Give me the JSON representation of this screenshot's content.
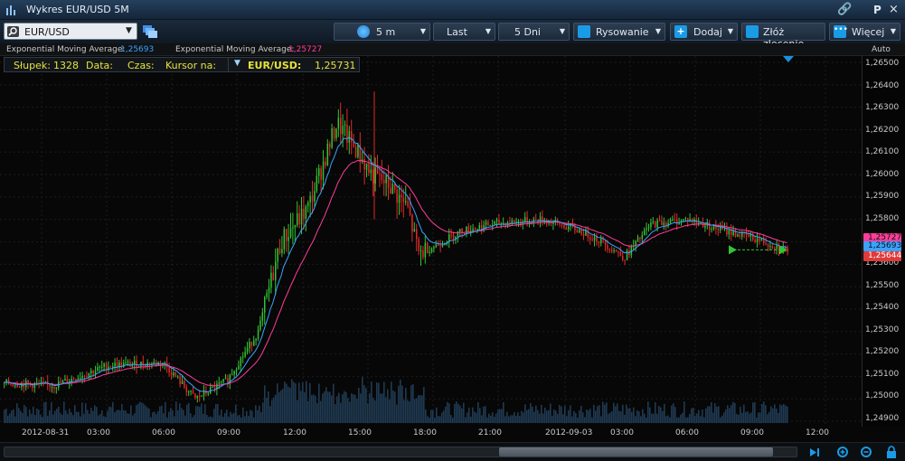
{
  "window": {
    "title": "Wykres EUR/USD 5M",
    "pin": "P",
    "close": "×"
  },
  "toolbar": {
    "symbol": "EUR/USD",
    "interval": "5 m",
    "price_type": "Last",
    "range": "5 Dni",
    "drawing": "Rysowanie",
    "add": "Dodaj",
    "order": "Złóż zlecenie",
    "more": "Więcej"
  },
  "indicators": [
    {
      "name": "Exponential Moving Average:",
      "value": "1,25693",
      "color": "#3aa3ff"
    },
    {
      "name": "Exponential Moving Average:",
      "value": "1,25727",
      "color": "#ff3d9a"
    }
  ],
  "scale_mode": "Auto",
  "info": {
    "bar_label": "Słupek:",
    "bar_value": "1328",
    "date_label": "Data:",
    "time_label": "Czas:",
    "cursor_label": "Kursor na:",
    "pair": "EUR/USD:",
    "price": "1,25731"
  },
  "price_ticks": [
    "1,26500",
    "1,26400",
    "1,26300",
    "1,26200",
    "1,26100",
    "1,26000",
    "1,25900",
    "1,25800",
    "1,25700",
    "1,25600",
    "1,25500",
    "1,25400",
    "1,25300",
    "1,25200",
    "1,25100",
    "1,25000",
    "1,24900"
  ],
  "price_labels": [
    {
      "text": "1,25727",
      "color": "#ff3d9a"
    },
    {
      "text": "1,25693",
      "color": "#3aa3ff"
    },
    {
      "text": "1,25644",
      "color": "#e03a3a"
    }
  ],
  "time_labels": [
    "2012-08-31",
    "03:00",
    "06:00",
    "09:00",
    "12:00",
    "15:00",
    "18:00",
    "21:00",
    "2012-09-03",
    "03:00",
    "06:00",
    "09:00",
    "12:00"
  ],
  "chart_data": {
    "type": "candlestick",
    "symbol": "EUR/USD",
    "interval": "5m",
    "ylim": [
      1.249,
      1.265
    ],
    "series": [
      {
        "name": "Exponential Moving Average",
        "color": "#3aa3ff",
        "last": 1.25693
      },
      {
        "name": "Exponential Moving Average",
        "color": "#ff3d9a",
        "last": 1.25727
      }
    ],
    "last_price": 1.25644,
    "colors": {
      "up": "#34c234",
      "down": "#e02a2a",
      "volume": "#1f3a52"
    }
  }
}
